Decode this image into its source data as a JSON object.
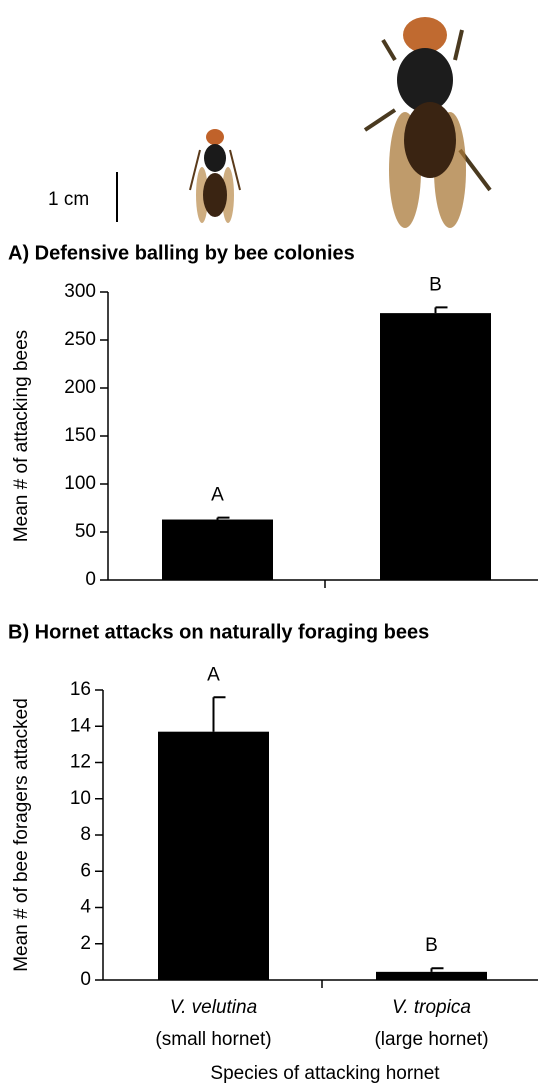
{
  "scale_bar_label": "1 cm",
  "chart_data": [
    {
      "type": "bar",
      "title": "A) Defensive balling by bee colonies",
      "ylabel": "Mean # of attacking bees",
      "categories": [
        null,
        null
      ],
      "values": [
        63,
        278
      ],
      "errors": [
        2,
        6
      ],
      "significance_labels": [
        "A",
        "B"
      ],
      "color": "#000000",
      "ylim": [
        0,
        300
      ],
      "yticks": [
        0,
        50,
        100,
        150,
        200,
        250,
        300
      ]
    },
    {
      "type": "bar",
      "title": "B) Hornet attacks on naturally foraging bees",
      "ylabel": "Mean # of bee foragers attacked",
      "categories": [
        "V. velutina",
        "V. tropica"
      ],
      "category_subtitles": [
        "(small hornet)",
        "(large hornet)"
      ],
      "xlabel": "Species of attacking hornet",
      "values": [
        13.7,
        0.45
      ],
      "errors": [
        1.9,
        0.2
      ],
      "significance_labels": [
        "A",
        "B"
      ],
      "color": "#000000",
      "ylim": [
        0,
        16
      ],
      "yticks": [
        0,
        2,
        4,
        6,
        8,
        10,
        12,
        14,
        16
      ]
    }
  ]
}
